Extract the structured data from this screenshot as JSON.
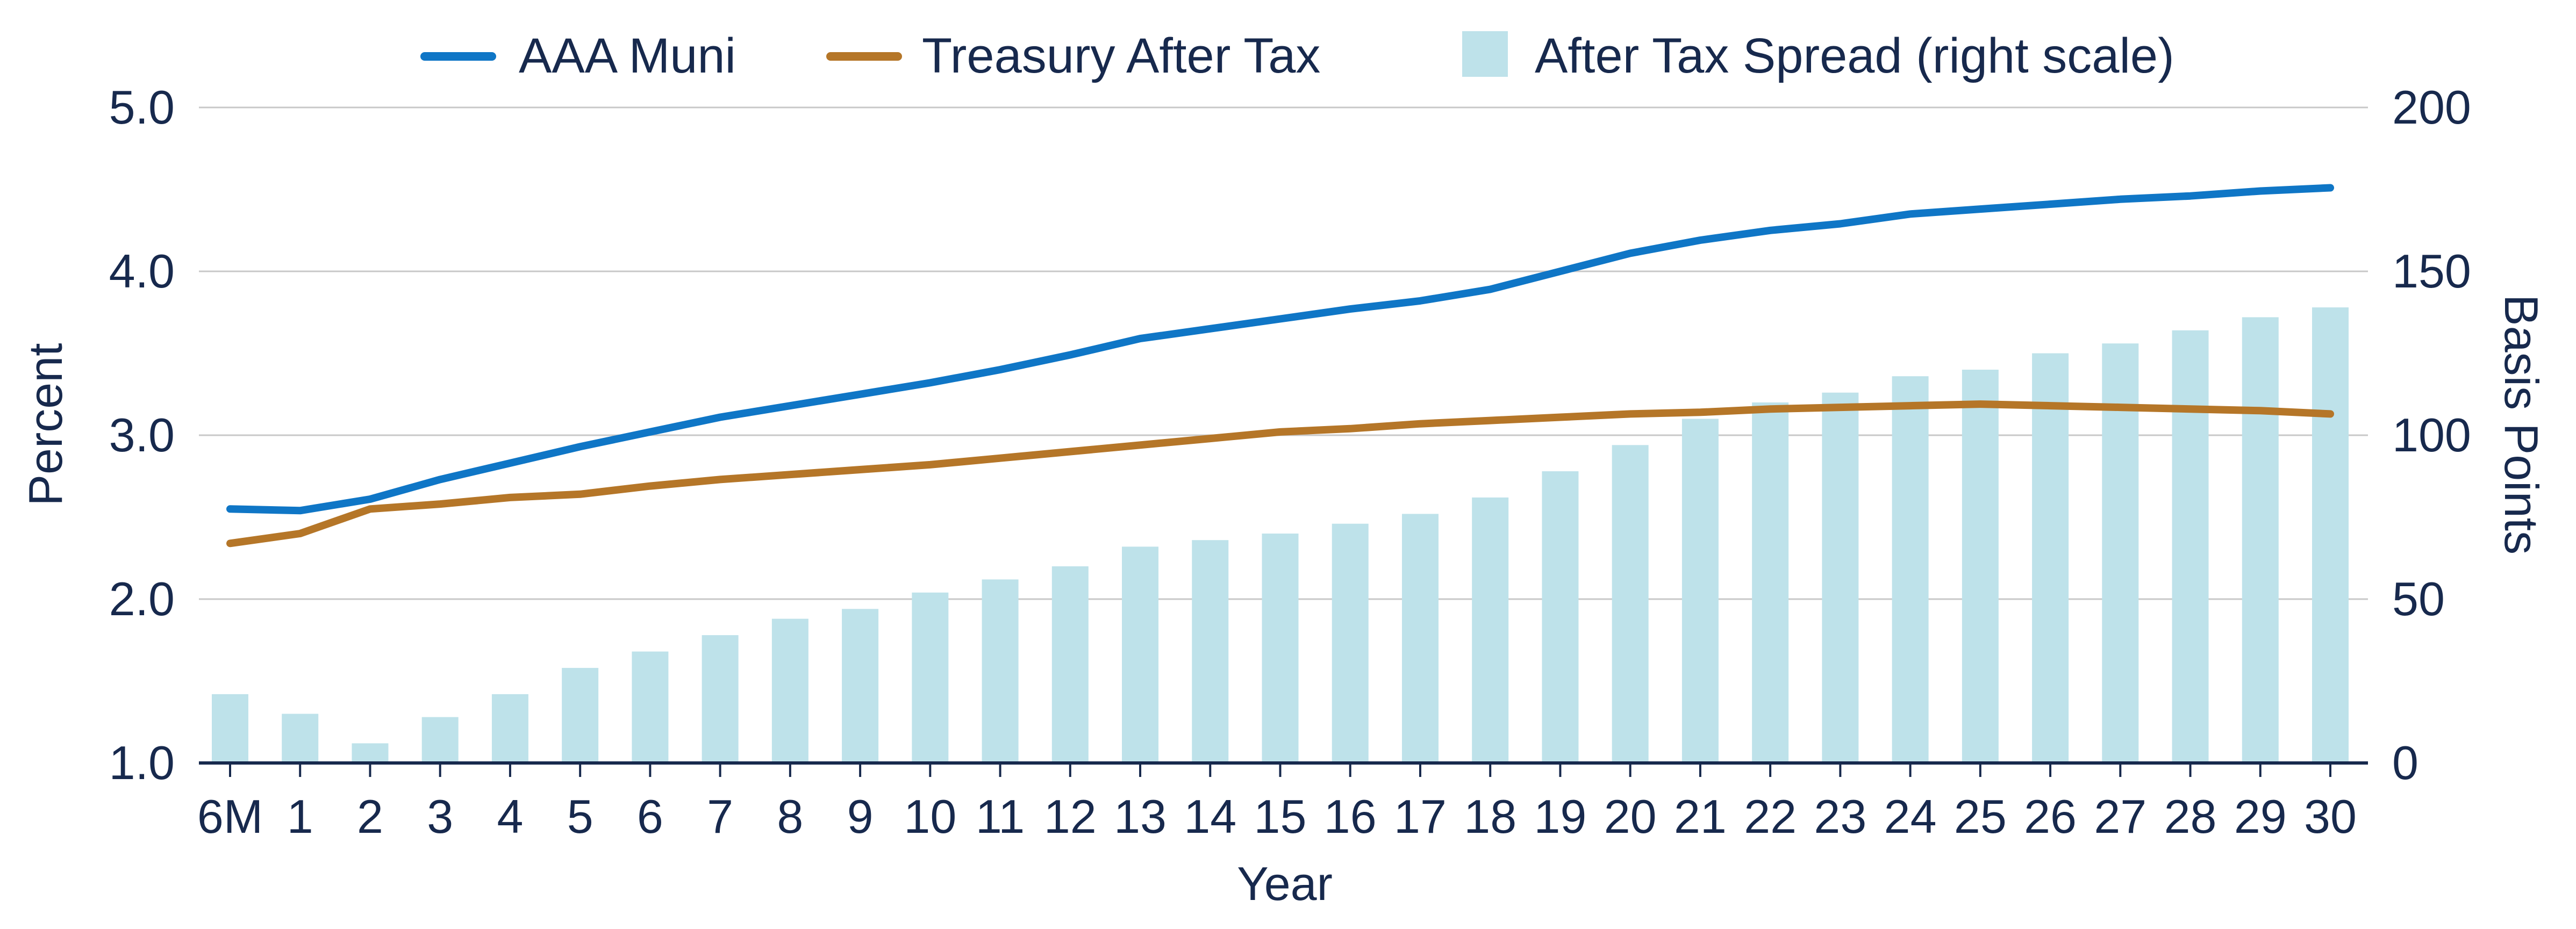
{
  "chart_data": {
    "type": "bar+line",
    "xlabel": "Year",
    "ylabel_left": "Percent",
    "ylabel_right": "Basis Points",
    "categories": [
      "6M",
      "1",
      "2",
      "3",
      "4",
      "5",
      "6",
      "7",
      "8",
      "9",
      "10",
      "11",
      "12",
      "13",
      "14",
      "15",
      "16",
      "17",
      "18",
      "19",
      "20",
      "21",
      "22",
      "23",
      "24",
      "25",
      "26",
      "27",
      "28",
      "29",
      "30"
    ],
    "y_left": {
      "min": 1.0,
      "max": 5.0,
      "ticks": [
        1.0,
        2.0,
        3.0,
        4.0,
        5.0
      ],
      "tick_labels": [
        "1.0",
        "2.0",
        "3.0",
        "4.0",
        "5.0"
      ]
    },
    "y_right": {
      "min": 0,
      "max": 200,
      "ticks": [
        0,
        50,
        100,
        150,
        200
      ],
      "tick_labels": [
        "0",
        "50",
        "100",
        "150",
        "200"
      ]
    },
    "grid": true,
    "legend_position": "top",
    "series": [
      {
        "name": "AAA Muni",
        "kind": "line",
        "axis": "left",
        "color": "#0f76c6",
        "values": [
          2.55,
          2.54,
          2.61,
          2.73,
          2.83,
          2.93,
          3.02,
          3.11,
          3.18,
          3.25,
          3.32,
          3.4,
          3.49,
          3.59,
          3.65,
          3.71,
          3.77,
          3.82,
          3.89,
          4.0,
          4.11,
          4.19,
          4.25,
          4.29,
          4.35,
          4.38,
          4.41,
          4.44,
          4.46,
          4.49,
          4.51
        ]
      },
      {
        "name": "Treasury After Tax",
        "kind": "line",
        "axis": "left",
        "color": "#b57628",
        "values": [
          2.34,
          2.4,
          2.55,
          2.58,
          2.62,
          2.64,
          2.69,
          2.73,
          2.76,
          2.79,
          2.82,
          2.86,
          2.9,
          2.94,
          2.98,
          3.02,
          3.04,
          3.07,
          3.09,
          3.11,
          3.13,
          3.14,
          3.16,
          3.17,
          3.18,
          3.19,
          3.18,
          3.17,
          3.16,
          3.15,
          3.13
        ]
      },
      {
        "name": "After Tax Spread (right scale)",
        "kind": "bar",
        "axis": "right",
        "color": "#bee2ea",
        "values": [
          21,
          15,
          6,
          14,
          21,
          29,
          34,
          39,
          44,
          47,
          52,
          56,
          60,
          66,
          68,
          70,
          73,
          76,
          81,
          89,
          97,
          105,
          110,
          113,
          118,
          120,
          125,
          128,
          132,
          136,
          139
        ]
      }
    ]
  }
}
